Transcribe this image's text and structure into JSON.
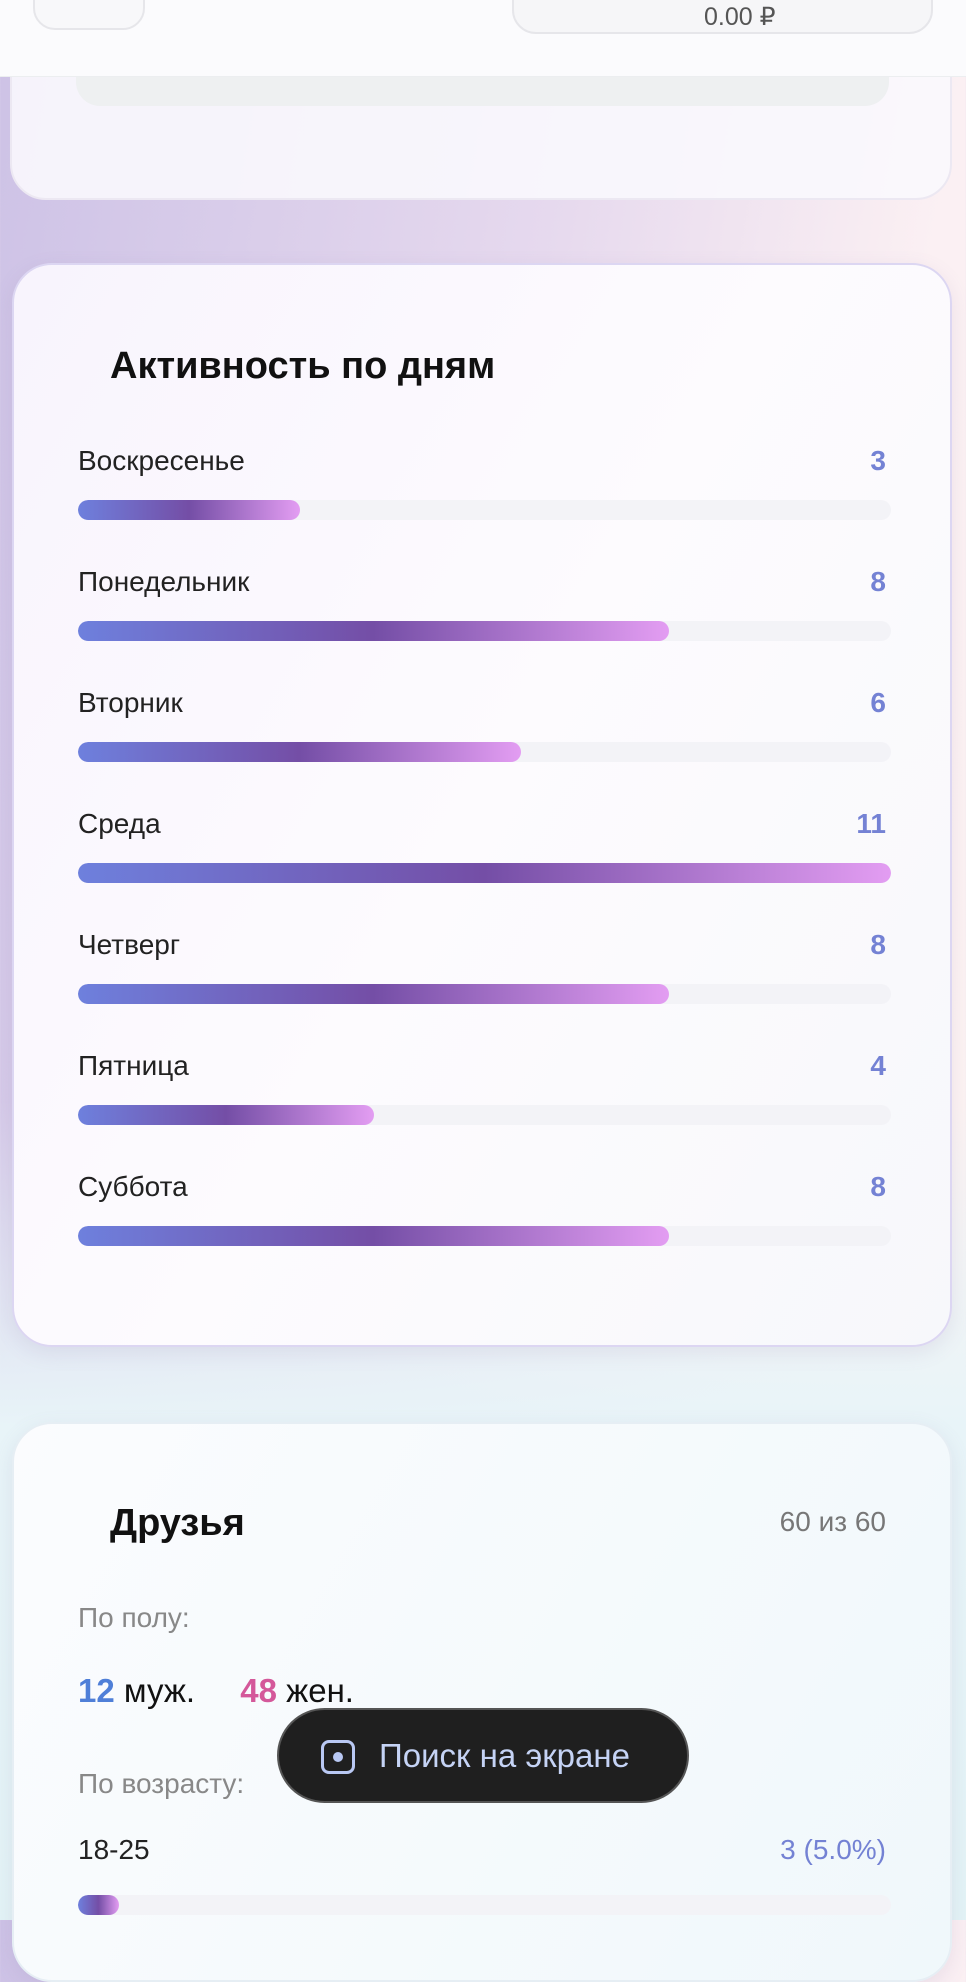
{
  "header": {
    "balance": "0.00 ₽"
  },
  "activity": {
    "title": "Активность по дням",
    "max": 11,
    "days": [
      {
        "label": "Воскресенье",
        "value": 3
      },
      {
        "label": "Понедельник",
        "value": 8
      },
      {
        "label": "Вторник",
        "value": 6
      },
      {
        "label": "Среда",
        "value": 11
      },
      {
        "label": "Четверг",
        "value": 8
      },
      {
        "label": "Пятница",
        "value": 4
      },
      {
        "label": "Суббота",
        "value": 8
      }
    ]
  },
  "friends": {
    "title": "Друзья",
    "count": "60 из 60",
    "gender_label": "По полу:",
    "male_count": "12",
    "male_label": "муж.",
    "female_count": "48",
    "female_label": "жен.",
    "age_label": "По возрасту:",
    "ages": [
      {
        "label": "18-25",
        "value": "3 (5.0%)",
        "percent": 5.0
      }
    ]
  },
  "overlay": {
    "label": "Поиск на экране",
    "icon": "screen-search-icon"
  },
  "colors": {
    "accent": "#7482d4",
    "male": "#4f7fd8",
    "female": "#d4589a"
  }
}
